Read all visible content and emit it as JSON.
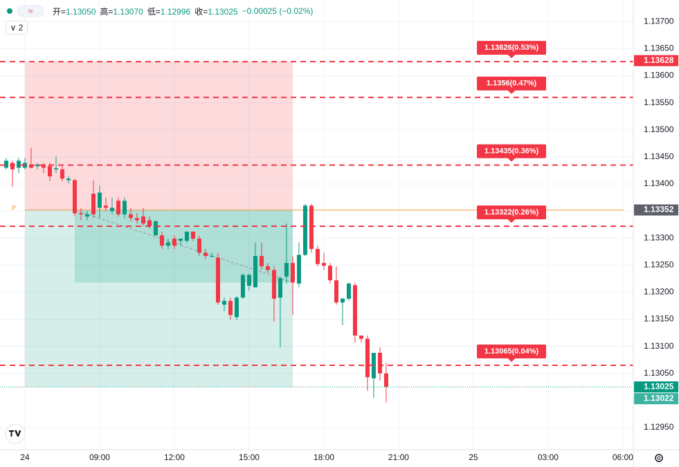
{
  "toolbar": {
    "icon": "≈",
    "legend": [
      {
        "label": "开=",
        "value": "1.13050"
      },
      {
        "label": "高=",
        "value": "1.13070"
      },
      {
        "label": "低=",
        "value": "1.12996"
      },
      {
        "label": "收=",
        "value": "1.13025"
      }
    ],
    "change": "−0.00025 (−0.02%)",
    "indicator_toggle": "∨ 2"
  },
  "chart_data": {
    "type": "candlestick",
    "up_color": "#089981",
    "down_color": "#f23645",
    "grid": true,
    "x": [
      5.25,
      5.5,
      5.75,
      6,
      6.25,
      6.5,
      6.75,
      7,
      7.25,
      7.5,
      7.75,
      8,
      8.25,
      8.5,
      8.75,
      9,
      9.25,
      9.5,
      9.75,
      10,
      10.25,
      10.5,
      10.75,
      11,
      11.25,
      11.5,
      11.75,
      12,
      12.25,
      12.5,
      12.75,
      13,
      13.25,
      13.5,
      13.75,
      14,
      14.25,
      14.5,
      14.75,
      15,
      15.25,
      15.5,
      15.75,
      16,
      16.25,
      16.5,
      16.75,
      17,
      17.25,
      17.5,
      17.75,
      18,
      18.25,
      18.5,
      18.75,
      19,
      19.25,
      19.5,
      19.75,
      20,
      20.25,
      20.5
    ],
    "open": [
      1.1343,
      1.13439,
      1.1343,
      1.1343,
      1.13436,
      1.13433,
      1.13436,
      1.13433,
      1.13427,
      1.13427,
      1.13407,
      1.13407,
      1.13346,
      1.1334,
      1.13382,
      1.13356,
      1.1336,
      1.1335,
      1.13369,
      1.13344,
      1.13344,
      1.13337,
      1.1334,
      1.13333,
      1.13305,
      1.13305,
      1.13286,
      1.13299,
      1.13295,
      1.13295,
      1.13312,
      1.13299,
      1.13273,
      1.13267,
      1.13264,
      1.13177,
      1.13184,
      1.13154,
      1.1319,
      1.13212,
      1.13209,
      1.13267,
      1.13248,
      1.13241,
      1.1319,
      1.13229,
      1.13254,
      1.13216,
      1.13269,
      1.1336,
      1.1328,
      1.13254,
      1.13249,
      1.13222,
      1.13181,
      1.13188,
      1.13213,
      1.1312,
      1.13114,
      1.13041,
      1.13088,
      1.1305
    ],
    "high": [
      1.13448,
      1.13443,
      1.13448,
      1.13448,
      1.13467,
      1.13439,
      1.13439,
      1.13439,
      1.13451,
      1.13433,
      1.13414,
      1.1341,
      1.13356,
      1.1335,
      1.13407,
      1.13397,
      1.13375,
      1.13375,
      1.13375,
      1.13375,
      1.13356,
      1.13346,
      1.13356,
      1.1334,
      1.13333,
      1.13312,
      1.13299,
      1.13305,
      1.13299,
      1.13312,
      1.13312,
      1.13305,
      1.1328,
      1.13273,
      1.13273,
      1.1319,
      1.1319,
      1.13193,
      1.13235,
      1.13235,
      1.13292,
      1.13292,
      1.13254,
      1.13248,
      1.13229,
      1.13327,
      1.13267,
      1.13292,
      1.13363,
      1.13363,
      1.13286,
      1.13273,
      1.13254,
      1.13248,
      1.1319,
      1.13218,
      1.13218,
      1.1312,
      1.1312,
      1.13088,
      1.13098,
      1.1307
    ],
    "low": [
      1.13427,
      1.13395,
      1.1342,
      1.13427,
      1.13429,
      1.13427,
      1.1342,
      1.13405,
      1.1342,
      1.13405,
      1.13401,
      1.1334,
      1.13333,
      1.13333,
      1.13337,
      1.13337,
      1.1335,
      1.13344,
      1.1334,
      1.13337,
      1.13331,
      1.13327,
      1.13323,
      1.13318,
      1.13305,
      1.1328,
      1.1328,
      1.1328,
      1.13286,
      1.13292,
      1.13295,
      1.13267,
      1.13261,
      1.13264,
      1.13177,
      1.13165,
      1.13149,
      1.13149,
      1.13188,
      1.13203,
      1.13209,
      1.13241,
      1.13235,
      1.13146,
      1.13098,
      1.13216,
      1.13158,
      1.13209,
      1.13267,
      1.13273,
      1.13248,
      1.13241,
      1.13216,
      1.13177,
      1.13139,
      1.13184,
      1.13107,
      1.13107,
      1.13018,
      1.13005,
      1.13037,
      1.12996
    ],
    "close": [
      1.13443,
      1.13427,
      1.13443,
      1.13439,
      1.1343,
      1.13436,
      1.1343,
      1.13414,
      1.13429,
      1.1341,
      1.1341,
      1.13346,
      1.13344,
      1.13344,
      1.13344,
      1.13384,
      1.13356,
      1.13356,
      1.13344,
      1.13369,
      1.13337,
      1.13333,
      1.13327,
      1.13323,
      1.13331,
      1.13286,
      1.13292,
      1.13286,
      1.13299,
      1.13312,
      1.13299,
      1.13273,
      1.13267,
      1.13267,
      1.13181,
      1.13184,
      1.13158,
      1.1319,
      1.13232,
      1.13232,
      1.13267,
      1.13248,
      1.13241,
      1.13188,
      1.13226,
      1.13254,
      1.13218,
      1.13269,
      1.1336,
      1.1328,
      1.13252,
      1.13249,
      1.13222,
      1.13181,
      1.13188,
      1.13216,
      1.1312,
      1.13114,
      1.13043,
      1.13088,
      1.1305,
      1.13025
    ],
    "xlim": [
      5,
      30.42
    ],
    "xticks": [
      {
        "value": 6,
        "label": "24"
      },
      {
        "value": 9,
        "label": "09:00"
      },
      {
        "value": 12,
        "label": "12:00"
      },
      {
        "value": 15,
        "label": "15:00"
      },
      {
        "value": 18,
        "label": "18:00"
      },
      {
        "value": 21,
        "label": "21:00"
      },
      {
        "value": 24,
        "label": "25"
      },
      {
        "value": 27,
        "label": "03:00"
      },
      {
        "value": 30,
        "label": "06:00"
      }
    ],
    "ylim": [
      1.12909,
      1.1374
    ],
    "yticks": [
      {
        "value": 1.137,
        "label": "1.13700"
      },
      {
        "value": 1.1365,
        "label": "1.13650"
      },
      {
        "value": 1.136,
        "label": "1.13600"
      },
      {
        "value": 1.1355,
        "label": "1.13550"
      },
      {
        "value": 1.135,
        "label": "1.13500"
      },
      {
        "value": 1.1345,
        "label": "1.13450"
      },
      {
        "value": 1.134,
        "label": "1.13400"
      },
      {
        "value": 1.1335,
        "label": "1.13350"
      },
      {
        "value": 1.133,
        "label": "1.13300"
      },
      {
        "value": 1.1325,
        "label": "1.13250"
      },
      {
        "value": 1.132,
        "label": "1.13200"
      },
      {
        "value": 1.1315,
        "label": "1.13150"
      },
      {
        "value": 1.131,
        "label": "1.13100"
      },
      {
        "value": 1.1305,
        "label": "1.13050"
      },
      {
        "value": 1.1295,
        "label": "1.12950"
      }
    ],
    "levels": [
      {
        "value": 1.13626,
        "label": "1.13626(0.53%)"
      },
      {
        "value": 1.1356,
        "label": "1.1356(0.47%)"
      },
      {
        "value": 1.13435,
        "label": "1.13435(0.36%)"
      },
      {
        "value": 1.13322,
        "label": "1.13322(0.26%)"
      },
      {
        "value": 1.13065,
        "label": "1.13065(0.04%)"
      }
    ],
    "level_color": "#f23645",
    "pivot": {
      "value": 1.13352,
      "label": "P",
      "color": "#f5a040"
    },
    "position": {
      "x_start": 6,
      "x_end": 16.75,
      "stop": 1.13626,
      "entry": 1.13352,
      "target": 1.13025,
      "fill_x_start": 8,
      "fill_bottom": 1.13218
    },
    "price_labels": [
      {
        "value": 1.13628,
        "color": "#f23645"
      },
      {
        "value": 1.13352,
        "color": "#5d606b"
      },
      {
        "value": 1.13025,
        "color": "#089981",
        "line": "dotted"
      },
      {
        "value": 1.13022,
        "color": "#3bb3a0"
      }
    ]
  }
}
